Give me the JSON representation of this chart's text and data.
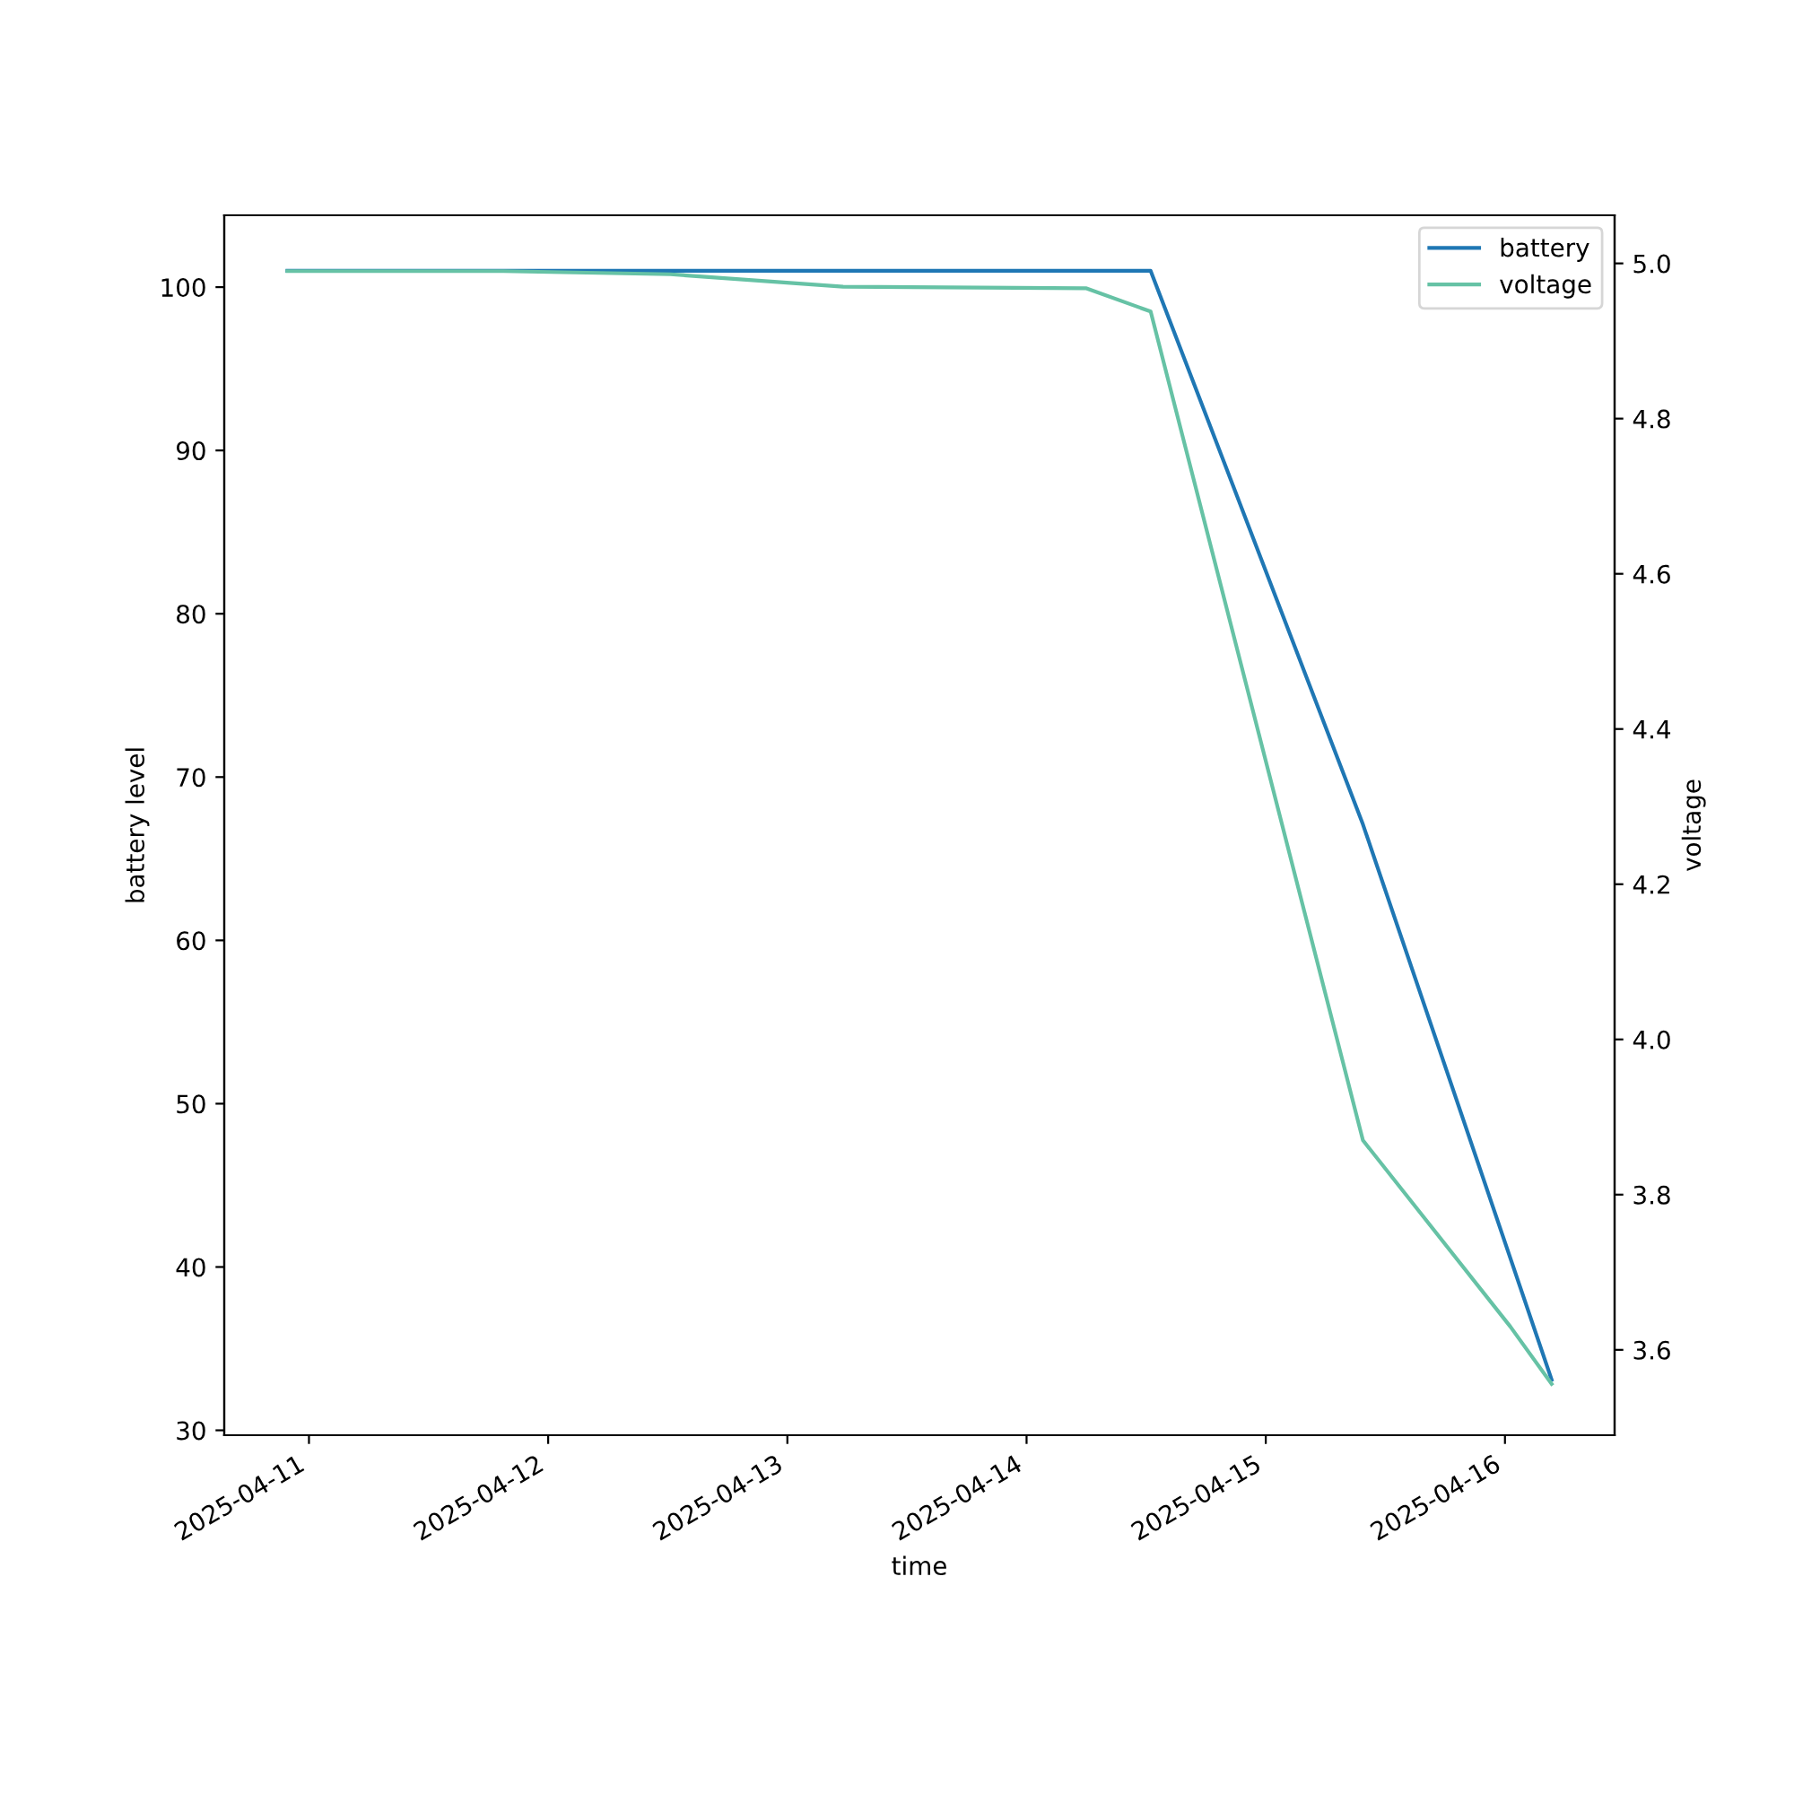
{
  "chart_data": {
    "type": "line",
    "xlabel": "time",
    "ylabel": "battery level",
    "y2label": "voltage",
    "xlim": [
      "2025-04-10T15:30",
      "2025-04-16T11:00"
    ],
    "xticks": [
      "2025-04-11",
      "2025-04-12",
      "2025-04-13",
      "2025-04-14",
      "2025-04-15",
      "2025-04-16"
    ],
    "ylim": [
      29.7,
      104.4
    ],
    "yticks": [
      30,
      40,
      50,
      60,
      70,
      80,
      90,
      100
    ],
    "y2lim": [
      3.49,
      5.062
    ],
    "y2ticks": [
      3.6,
      3.8,
      {
        "value": 4,
        "label": "4.0"
      },
      4.2,
      4.4,
      4.6,
      4.8,
      {
        "value": 5,
        "label": "5.0"
      }
    ],
    "legend": "top right",
    "grid": false,
    "series": [
      {
        "name": "battery",
        "color": "#1f77b4",
        "x": [
          "2025-04-10T21:50",
          "2025-04-14T12:27",
          "2025-04-15T09:45",
          "2025-04-16T04:41"
        ],
        "values": [
          101,
          101,
          67.1,
          33.1
        ]
      },
      {
        "name": "voltage",
        "color": "#66c2a5",
        "axis": "y2",
        "x": [
          "2025-04-10T21:50",
          "2025-04-11T19:30",
          "2025-04-12T12:16",
          "2025-04-13T05:36",
          "2025-04-14T05:57",
          "2025-04-14T12:27",
          "2025-04-15T09:45",
          "2025-04-16T00:32",
          "2025-04-16T04:41"
        ],
        "values": [
          4.99,
          4.99,
          4.986,
          4.97,
          4.968,
          4.938,
          3.87,
          3.63,
          3.556
        ]
      }
    ]
  }
}
